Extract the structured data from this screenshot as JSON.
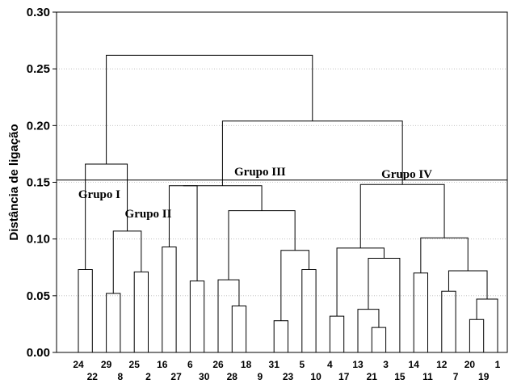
{
  "chart_data": {
    "type": "dendrogram",
    "ylabel": "Distância de ligação",
    "ylim": [
      0,
      0.3
    ],
    "yticks": [
      "0.00",
      "0.05",
      "0.10",
      "0.15",
      "0.20",
      "0.25",
      "0.30"
    ],
    "grid": "horizontal-dotted",
    "cut_height": 0.152,
    "leaf_order": [
      "24",
      "22",
      "29",
      "8",
      "25",
      "2",
      "16",
      "27",
      "6",
      "30",
      "26",
      "28",
      "18",
      "9",
      "31",
      "23",
      "5",
      "10",
      "4",
      "17",
      "13",
      "21",
      "3",
      "15",
      "14",
      "11",
      "12",
      "7",
      "20",
      "19",
      "1"
    ],
    "tick_labels_row1": [
      "24",
      "29",
      "25",
      "16",
      "6",
      "26",
      "18",
      "31",
      "5",
      "4",
      "13",
      "3",
      "14",
      "12",
      "20",
      "1"
    ],
    "tick_labels_row2": [
      "22",
      "8",
      "2",
      "27",
      "30",
      "28",
      "9",
      "23",
      "10",
      "17",
      "21",
      "15",
      "11",
      "7",
      "19"
    ],
    "merges": [
      {
        "left": "24",
        "right": "22",
        "height": 0.073
      },
      {
        "left": "29",
        "right": "8",
        "height": 0.052
      },
      {
        "left": "25",
        "right": "2",
        "height": 0.071
      },
      {
        "left": "29|8",
        "right": "25|2",
        "height": 0.107
      },
      {
        "left": "24|22",
        "right": "29|8|25|2",
        "height": 0.166
      },
      {
        "left": "16",
        "right": "27",
        "height": 0.093
      },
      {
        "left": "6",
        "right": "30",
        "height": 0.063
      },
      {
        "left": "16|27",
        "right": "6|30",
        "height": 0.147
      },
      {
        "left": "28",
        "right": "18",
        "height": 0.041
      },
      {
        "left": "26",
        "right": "28|18",
        "height": 0.064
      },
      {
        "left": "31",
        "right": "23",
        "height": 0.028
      },
      {
        "left": "5",
        "right": "10",
        "height": 0.073
      },
      {
        "left": "31|23",
        "right": "5|10",
        "height": 0.09
      },
      {
        "left": "26|28|18",
        "right": "31|23|5|10",
        "height": 0.125
      },
      {
        "left": "4",
        "right": "17",
        "height": 0.032
      },
      {
        "left": "21",
        "right": "3",
        "height": 0.022
      },
      {
        "left": "13",
        "right": "21|3",
        "height": 0.038
      },
      {
        "left": "15",
        "right": "13|21|3",
        "height": 0.083
      },
      {
        "left": "4|17",
        "right": "15|13|21|3",
        "height": 0.092
      },
      {
        "left": "14",
        "right": "11",
        "height": 0.07
      },
      {
        "left": "12",
        "right": "7",
        "height": 0.054
      },
      {
        "left": "20",
        "right": "19",
        "height": 0.029
      },
      {
        "left": "20|19",
        "right": "1",
        "height": 0.047
      },
      {
        "left": "12|7",
        "right": "20|19|1",
        "height": 0.072
      },
      {
        "left": "14|11",
        "right": "12|7|20|19|1",
        "height": 0.101
      },
      {
        "left": "4|17|15|13|21|3",
        "right": "14|11|12|7|20|19|1",
        "height": 0.148
      },
      {
        "left": "16|27|6|30",
        "right": "26|28|18|31|23|5|10",
        "height": 0.147
      },
      {
        "left": "Grupo III",
        "right": "Grupo IV",
        "height": 0.204
      },
      {
        "left": "Grupo I|Grupo II",
        "right": "Grupo III|Grupo IV",
        "height": 0.262
      }
    ],
    "group_labels": [
      {
        "text": "Grupo I",
        "at": [
          1.5,
          0.136
        ]
      },
      {
        "text": "Grupo II",
        "at": [
          5.0,
          0.119
        ]
      },
      {
        "text": "Grupo III",
        "at": [
          13.0,
          0.156
        ]
      },
      {
        "text": "Grupo IV",
        "at": [
          23.5,
          0.154
        ]
      }
    ]
  }
}
